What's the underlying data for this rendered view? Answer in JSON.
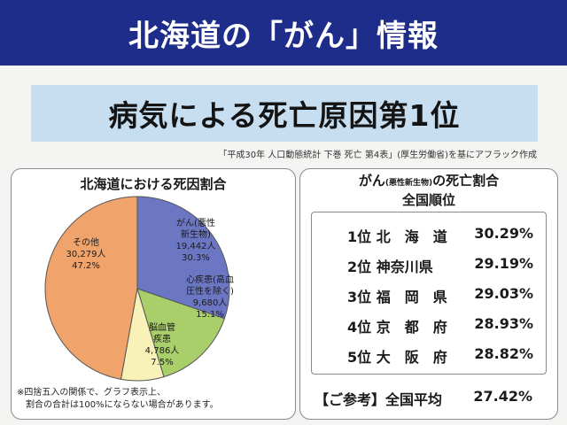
{
  "header": {
    "title": "北海道の「がん」情報",
    "subtitle": "病気による死亡原因第1位",
    "source": "「平成30年 人口動態統計 下巻 死亡 第4表」(厚生労働省)を基にアフラック作成"
  },
  "left_panel": {
    "title": "北海道における死因割合",
    "note_line1": "※四捨五入の関係で、グラフ表示上、",
    "note_line2": "割合の合計は100%にならない場合があります。"
  },
  "right_panel": {
    "title_main": "がん",
    "title_small": "(悪性新生物)",
    "title_tail": "の死亡割合",
    "subtitle": "全国順位",
    "rankings": [
      {
        "label": "1位 北　海　道",
        "value": "30.29%"
      },
      {
        "label": "2位 神奈川県",
        "value": "29.19%"
      },
      {
        "label": "3位 福　岡　県",
        "value": "29.03%"
      },
      {
        "label": "4位 京　都　府",
        "value": "28.93%"
      },
      {
        "label": "5位 大　阪　府",
        "value": "28.82%"
      }
    ],
    "average_label": "【ご参考】全国平均",
    "average_value": "27.42%"
  },
  "chart_data": {
    "type": "pie",
    "title": "北海道における死因割合",
    "slices": [
      {
        "name_lines": [
          "がん(悪性",
          "新生物)"
        ],
        "count": "19,442人",
        "percent_label": "30.3%",
        "value": 30.3,
        "color": "#6c77c4"
      },
      {
        "name_lines": [
          "心疾患(高血",
          "圧性を除く)"
        ],
        "count": "9,680人",
        "percent_label": "15.1%",
        "value": 15.1,
        "color": "#a8cf6a"
      },
      {
        "name_lines": [
          "脳血管",
          "疾患"
        ],
        "count": "4,786人",
        "percent_label": "7.5%",
        "value": 7.5,
        "color": "#f8f1b8"
      },
      {
        "name_lines": [
          "その他"
        ],
        "count": "30,279人",
        "percent_label": "47.2%",
        "value": 47.2,
        "color": "#f0a36a"
      }
    ]
  }
}
